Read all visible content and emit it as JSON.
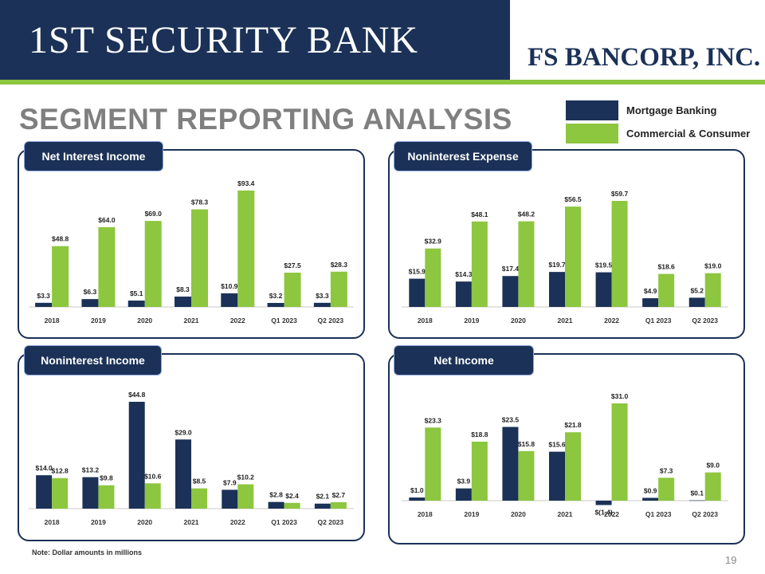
{
  "header": {
    "brand_left": "1ST SECURITY BANK",
    "brand_right": "FS BANCORP, INC."
  },
  "title": "SEGMENT REPORTING ANALYSIS",
  "legend": {
    "mortgage": "Mortgage Banking",
    "commercial": "Commercial & Consumer"
  },
  "colors": {
    "navy": "#1b3157",
    "green": "#8dc63f"
  },
  "footnote": "Note: Dollar amounts in millions",
  "page_number": "19",
  "chart_data": [
    {
      "type": "bar",
      "title": "Net Interest Income",
      "categories": [
        "2018",
        "2019",
        "2020",
        "2021",
        "2022",
        "Q1 2023",
        "Q2 2023"
      ],
      "series": [
        {
          "name": "Mortgage Banking",
          "values": [
            3.3,
            6.3,
            5.1,
            8.3,
            10.9,
            3.2,
            3.3
          ],
          "labels": [
            "$3.3",
            "$6.3",
            "$5.1",
            "$8.3",
            "$10.9",
            "$3.2",
            "$3.3"
          ]
        },
        {
          "name": "Commercial & Consumer",
          "values": [
            48.8,
            64.0,
            69.0,
            78.3,
            93.4,
            27.5,
            28.3
          ],
          "labels": [
            "$48.8",
            "$64.0",
            "$69.0",
            "$78.3",
            "$93.4",
            "$27.5",
            "$28.3"
          ]
        }
      ],
      "ylim": [
        0,
        93.4
      ]
    },
    {
      "type": "bar",
      "title": "Noninterest Expense",
      "categories": [
        "2018",
        "2019",
        "2020",
        "2021",
        "2022",
        "Q1 2023",
        "Q2 2023"
      ],
      "series": [
        {
          "name": "Mortgage Banking",
          "values": [
            15.9,
            14.3,
            17.4,
            19.7,
            19.5,
            4.9,
            5.2
          ],
          "labels": [
            "$15.9",
            "$14.3",
            "$17.4",
            "$19.7",
            "$19.5",
            "$4.9",
            "$5.2"
          ]
        },
        {
          "name": "Commercial & Consumer",
          "values": [
            32.9,
            48.1,
            48.2,
            56.5,
            59.7,
            18.6,
            19.0
          ],
          "labels": [
            "$32.9",
            "$48.1",
            "$48.2",
            "$56.5",
            "$59.7",
            "$18.6",
            "$19.0"
          ]
        }
      ],
      "ylim": [
        0,
        59.7
      ]
    },
    {
      "type": "bar",
      "title": "Noninterest Income",
      "categories": [
        "2018",
        "2019",
        "2020",
        "2021",
        "2022",
        "Q1 2023",
        "Q2 2023"
      ],
      "series": [
        {
          "name": "Mortgage Banking",
          "values": [
            14.0,
            13.2,
            44.8,
            29.0,
            7.9,
            2.8,
            2.1
          ],
          "labels": [
            "$14.0",
            "$13.2",
            "$44.8",
            "$29.0",
            "$7.9",
            "$2.8",
            "$2.1"
          ]
        },
        {
          "name": "Commercial & Consumer",
          "values": [
            12.8,
            9.8,
            10.6,
            8.5,
            10.2,
            2.4,
            2.7
          ],
          "labels": [
            "$12.8",
            "$9.8",
            "$10.6",
            "$8.5",
            "$10.2",
            "$2.4",
            "$2.7"
          ]
        }
      ],
      "ylim": [
        0,
        44.8
      ]
    },
    {
      "type": "bar",
      "title": "Net Income",
      "categories": [
        "2018",
        "2019",
        "2020",
        "2021",
        "2022",
        "Q1 2023",
        "Q2 2023"
      ],
      "series": [
        {
          "name": "Mortgage Banking",
          "values": [
            1.0,
            3.9,
            23.5,
            15.6,
            -1.4,
            0.9,
            0.1
          ],
          "labels": [
            "$1.0",
            "$3.9",
            "$23.5",
            "$15.6",
            "$(1.4)",
            "$0.9",
            "$0.1"
          ]
        },
        {
          "name": "Commercial & Consumer",
          "values": [
            23.3,
            18.8,
            15.8,
            21.8,
            31.0,
            7.3,
            9.0
          ],
          "labels": [
            "$23.3",
            "$18.8",
            "$15.8",
            "$21.8",
            "$31.0",
            "$7.3",
            "$9.0"
          ]
        }
      ],
      "ylim": [
        -1.4,
        31.0
      ]
    }
  ]
}
